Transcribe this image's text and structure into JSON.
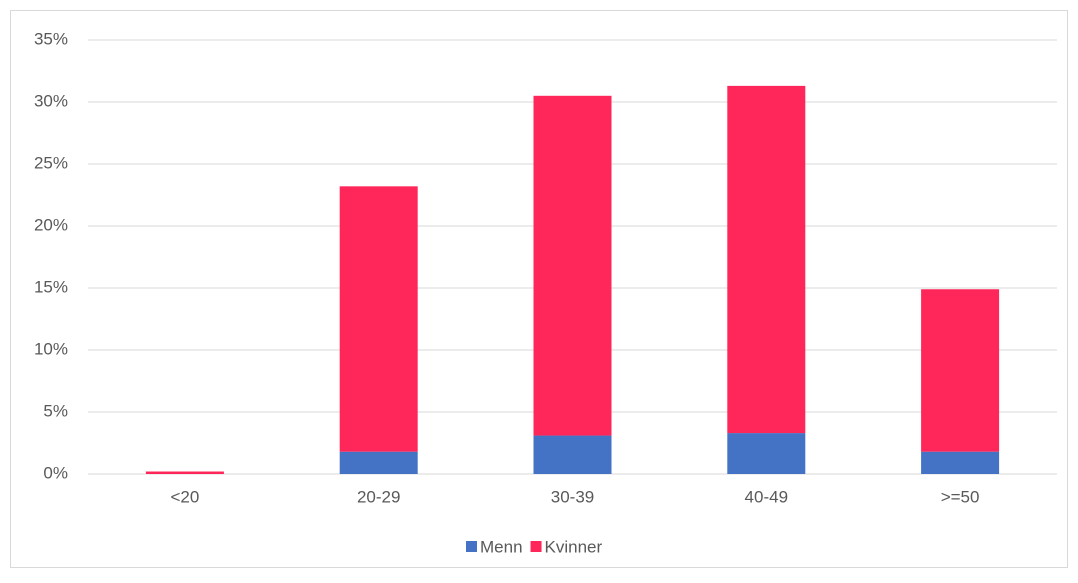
{
  "chart_data": {
    "type": "stacked_bar",
    "categories": [
      "<20",
      "20-29",
      "30-39",
      "40-49",
      ">=50"
    ],
    "series": [
      {
        "name": "Menn",
        "color": "#4472c4",
        "values": [
          0,
          1.8,
          3.1,
          3.3,
          1.8
        ]
      },
      {
        "name": "Kvinner",
        "color": "#ff2759",
        "values": [
          0.2,
          21.4,
          27.4,
          28.0,
          13.1
        ]
      }
    ],
    "ylim": [
      0,
      35
    ],
    "yticks": [
      {
        "value": 0,
        "label": "0%"
      },
      {
        "value": 5,
        "label": "5%"
      },
      {
        "value": 10,
        "label": "10%"
      },
      {
        "value": 15,
        "label": "15%"
      },
      {
        "value": 20,
        "label": "20%"
      },
      {
        "value": 25,
        "label": "25%"
      },
      {
        "value": 30,
        "label": "30%"
      },
      {
        "value": 35,
        "label": "35%"
      }
    ],
    "grid": true
  }
}
